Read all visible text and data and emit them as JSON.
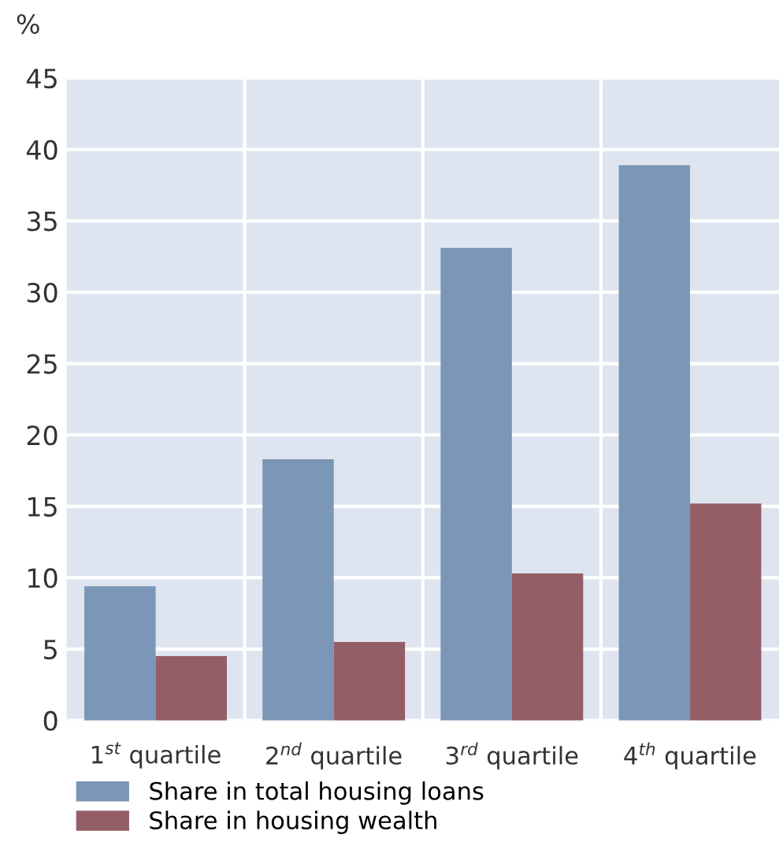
{
  "chart_data": {
    "type": "bar",
    "ylabel": "%",
    "categories": [
      "1$^{st}$ quartile",
      "2$^{nd}$ quartile",
      "3$^{rd}$ quartile",
      "4$^{th}$ quartile"
    ],
    "series": [
      {
        "name": "Share in total housing loans",
        "color": "#7b96b6",
        "values": [
          9.4,
          18.3,
          33.1,
          38.9
        ]
      },
      {
        "name": "Share in housing wealth",
        "color": "#945e67",
        "values": [
          4.5,
          5.5,
          10.3,
          15.2
        ]
      }
    ],
    "ylim": [
      0,
      45
    ],
    "yticks": [
      0,
      5,
      10,
      15,
      20,
      25,
      30,
      35,
      40,
      45
    ],
    "grid": true,
    "legend": "bottom"
  }
}
